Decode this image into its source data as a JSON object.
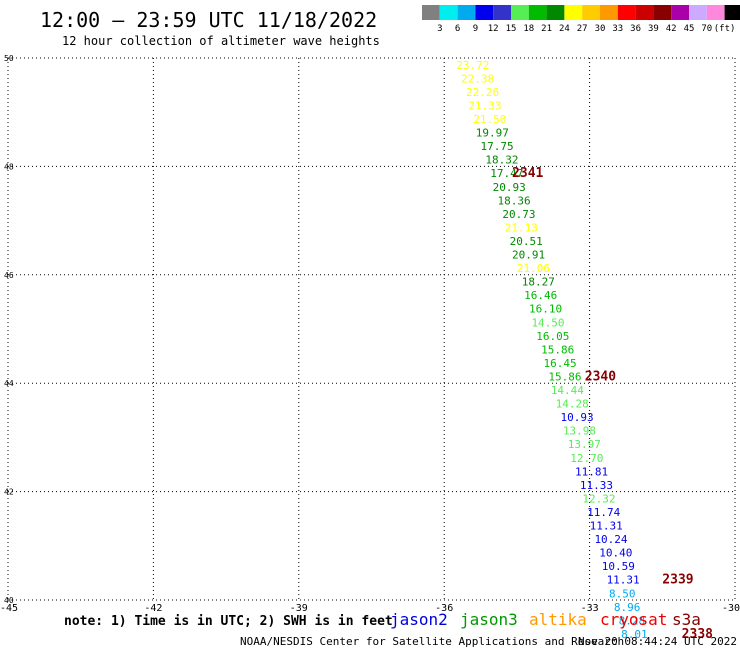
{
  "chart_data": {
    "type": "scatter",
    "title": "12:00 – 23:59 UTC 11/18/2022",
    "subtitle": "12 hour collection of altimeter wave heights",
    "xlim": [
      -45,
      -30
    ],
    "ylim": [
      40,
      50
    ],
    "x_ticks": [
      "-45",
      "-42",
      "-39",
      "-36",
      "-33",
      "-30"
    ],
    "y_ticks": [
      "40",
      "42",
      "44",
      "46",
      "48",
      "50"
    ],
    "grid": true,
    "color_scale": {
      "colors": [
        "#808080",
        "#00eeee",
        "#00aaee",
        "#0000ee",
        "#3333cc",
        "#55ee55",
        "#00bb00",
        "#008800",
        "#ffff00",
        "#ffcc00",
        "#ff9900",
        "#ff0000",
        "#cc0000",
        "#880000",
        "#aa00aa",
        "#ccaaff",
        "#ff88dd",
        "#000000"
      ],
      "labels": [
        "3",
        "6",
        "9",
        "12",
        "15",
        "18",
        "21",
        "24",
        "27",
        "30",
        "33",
        "36",
        "39",
        "42",
        "45",
        "70",
        "(ft)"
      ]
    },
    "points": [
      {
        "x": -35.75,
        "y": 49.8,
        "label": "23.72",
        "color": "#ffff00"
      },
      {
        "x": -35.65,
        "y": 49.55,
        "label": "22.38",
        "color": "#ffff00"
      },
      {
        "x": -35.55,
        "y": 49.3,
        "label": "22.26",
        "color": "#ffff00"
      },
      {
        "x": -35.5,
        "y": 49.05,
        "label": "21.33",
        "color": "#ffff00"
      },
      {
        "x": -35.4,
        "y": 48.8,
        "label": "21.50",
        "color": "#ffff00"
      },
      {
        "x": -35.35,
        "y": 48.55,
        "label": "19.97",
        "color": "#008800"
      },
      {
        "x": -35.25,
        "y": 48.3,
        "label": "17.75",
        "color": "#008800"
      },
      {
        "x": -35.15,
        "y": 48.05,
        "label": "18.32",
        "color": "#008800"
      },
      {
        "x": -35.05,
        "y": 47.8,
        "label": "17.47",
        "color": "#008800"
      },
      {
        "x": -35.0,
        "y": 47.55,
        "label": "20.93",
        "color": "#008800"
      },
      {
        "x": -34.9,
        "y": 47.3,
        "label": "18.36",
        "color": "#008800"
      },
      {
        "x": -34.8,
        "y": 47.05,
        "label": "20.73",
        "color": "#008800"
      },
      {
        "x": -34.75,
        "y": 46.8,
        "label": "21.13",
        "color": "#ffff00"
      },
      {
        "x": -34.65,
        "y": 46.55,
        "label": "20.51",
        "color": "#008800"
      },
      {
        "x": -34.6,
        "y": 46.3,
        "label": "20.91",
        "color": "#008800"
      },
      {
        "x": -34.5,
        "y": 46.05,
        "label": "21.06",
        "color": "#ffff00"
      },
      {
        "x": -34.4,
        "y": 45.8,
        "label": "18.27",
        "color": "#008800"
      },
      {
        "x": -34.35,
        "y": 45.55,
        "label": "16.46",
        "color": "#00bb00"
      },
      {
        "x": -34.25,
        "y": 45.3,
        "label": "16.10",
        "color": "#00bb00"
      },
      {
        "x": -34.2,
        "y": 45.05,
        "label": "14.50",
        "color": "#55ee55"
      },
      {
        "x": -34.1,
        "y": 44.8,
        "label": "16.05",
        "color": "#00bb00"
      },
      {
        "x": -34.0,
        "y": 44.55,
        "label": "15.86",
        "color": "#00bb00"
      },
      {
        "x": -33.95,
        "y": 44.3,
        "label": "16.45",
        "color": "#00bb00"
      },
      {
        "x": -33.85,
        "y": 44.05,
        "label": "15.86",
        "color": "#00bb00"
      },
      {
        "x": -33.8,
        "y": 43.8,
        "label": "14.44",
        "color": "#55ee55"
      },
      {
        "x": -33.7,
        "y": 43.55,
        "label": "14.28",
        "color": "#55ee55"
      },
      {
        "x": -33.6,
        "y": 43.3,
        "label": "10.93",
        "color": "#0000ee"
      },
      {
        "x": -33.55,
        "y": 43.05,
        "label": "13.98",
        "color": "#55ee55"
      },
      {
        "x": -33.45,
        "y": 42.8,
        "label": "13.97",
        "color": "#55ee55"
      },
      {
        "x": -33.4,
        "y": 42.55,
        "label": "12.70",
        "color": "#55ee55"
      },
      {
        "x": -33.3,
        "y": 42.3,
        "label": "11.81",
        "color": "#0000ee"
      },
      {
        "x": -33.2,
        "y": 42.05,
        "label": "11.33",
        "color": "#0000ee"
      },
      {
        "x": -33.15,
        "y": 41.8,
        "label": "12.32",
        "color": "#55ee55"
      },
      {
        "x": -33.05,
        "y": 41.55,
        "label": "11.74",
        "color": "#0000ee"
      },
      {
        "x": -33.0,
        "y": 41.3,
        "label": "11.31",
        "color": "#0000ee"
      },
      {
        "x": -32.9,
        "y": 41.05,
        "label": "10.24",
        "color": "#0000ee"
      },
      {
        "x": -32.8,
        "y": 40.8,
        "label": "10.40",
        "color": "#0000ee"
      },
      {
        "x": -32.75,
        "y": 40.55,
        "label": "10.59",
        "color": "#0000ee"
      },
      {
        "x": -32.65,
        "y": 40.3,
        "label": "11.31",
        "color": "#0000ee"
      },
      {
        "x": -32.6,
        "y": 40.05,
        "label": "8.50",
        "color": "#00aaee"
      },
      {
        "x": -32.5,
        "y": 39.8,
        "label": "8.96",
        "color": "#00aaee"
      },
      {
        "x": -32.4,
        "y": 39.55,
        "label": "8.28",
        "color": "#00aaee"
      },
      {
        "x": -32.35,
        "y": 39.3,
        "label": "8.01",
        "color": "#00aaee"
      }
    ],
    "pass_labels": [
      {
        "x": -34.6,
        "y": 47.8,
        "text": "2341",
        "color": "#880000"
      },
      {
        "x": -33.1,
        "y": 44.05,
        "text": "2340",
        "color": "#880000"
      },
      {
        "x": -31.5,
        "y": 40.3,
        "text": "2339",
        "color": "#880000"
      },
      {
        "x": -31.1,
        "y": 39.3,
        "text": "2338",
        "color": "#880000"
      }
    ]
  },
  "footer": {
    "note": "note:  1) Time is in UTC;  2) SWH is in feet",
    "satellites": [
      {
        "name": "jason2",
        "color": "#0000dd"
      },
      {
        "name": "jason3",
        "color": "#009900"
      },
      {
        "name": "altika",
        "color": "#ff9900"
      },
      {
        "name": "cryosat",
        "color": "#ee0000"
      },
      {
        "name": "s3a",
        "color": "#880000"
      }
    ],
    "credit": "NOAA/NESDIS Center for Satellite Applications and Research",
    "timestamp": "Nov 20 08:44:24 UTC 2022"
  }
}
